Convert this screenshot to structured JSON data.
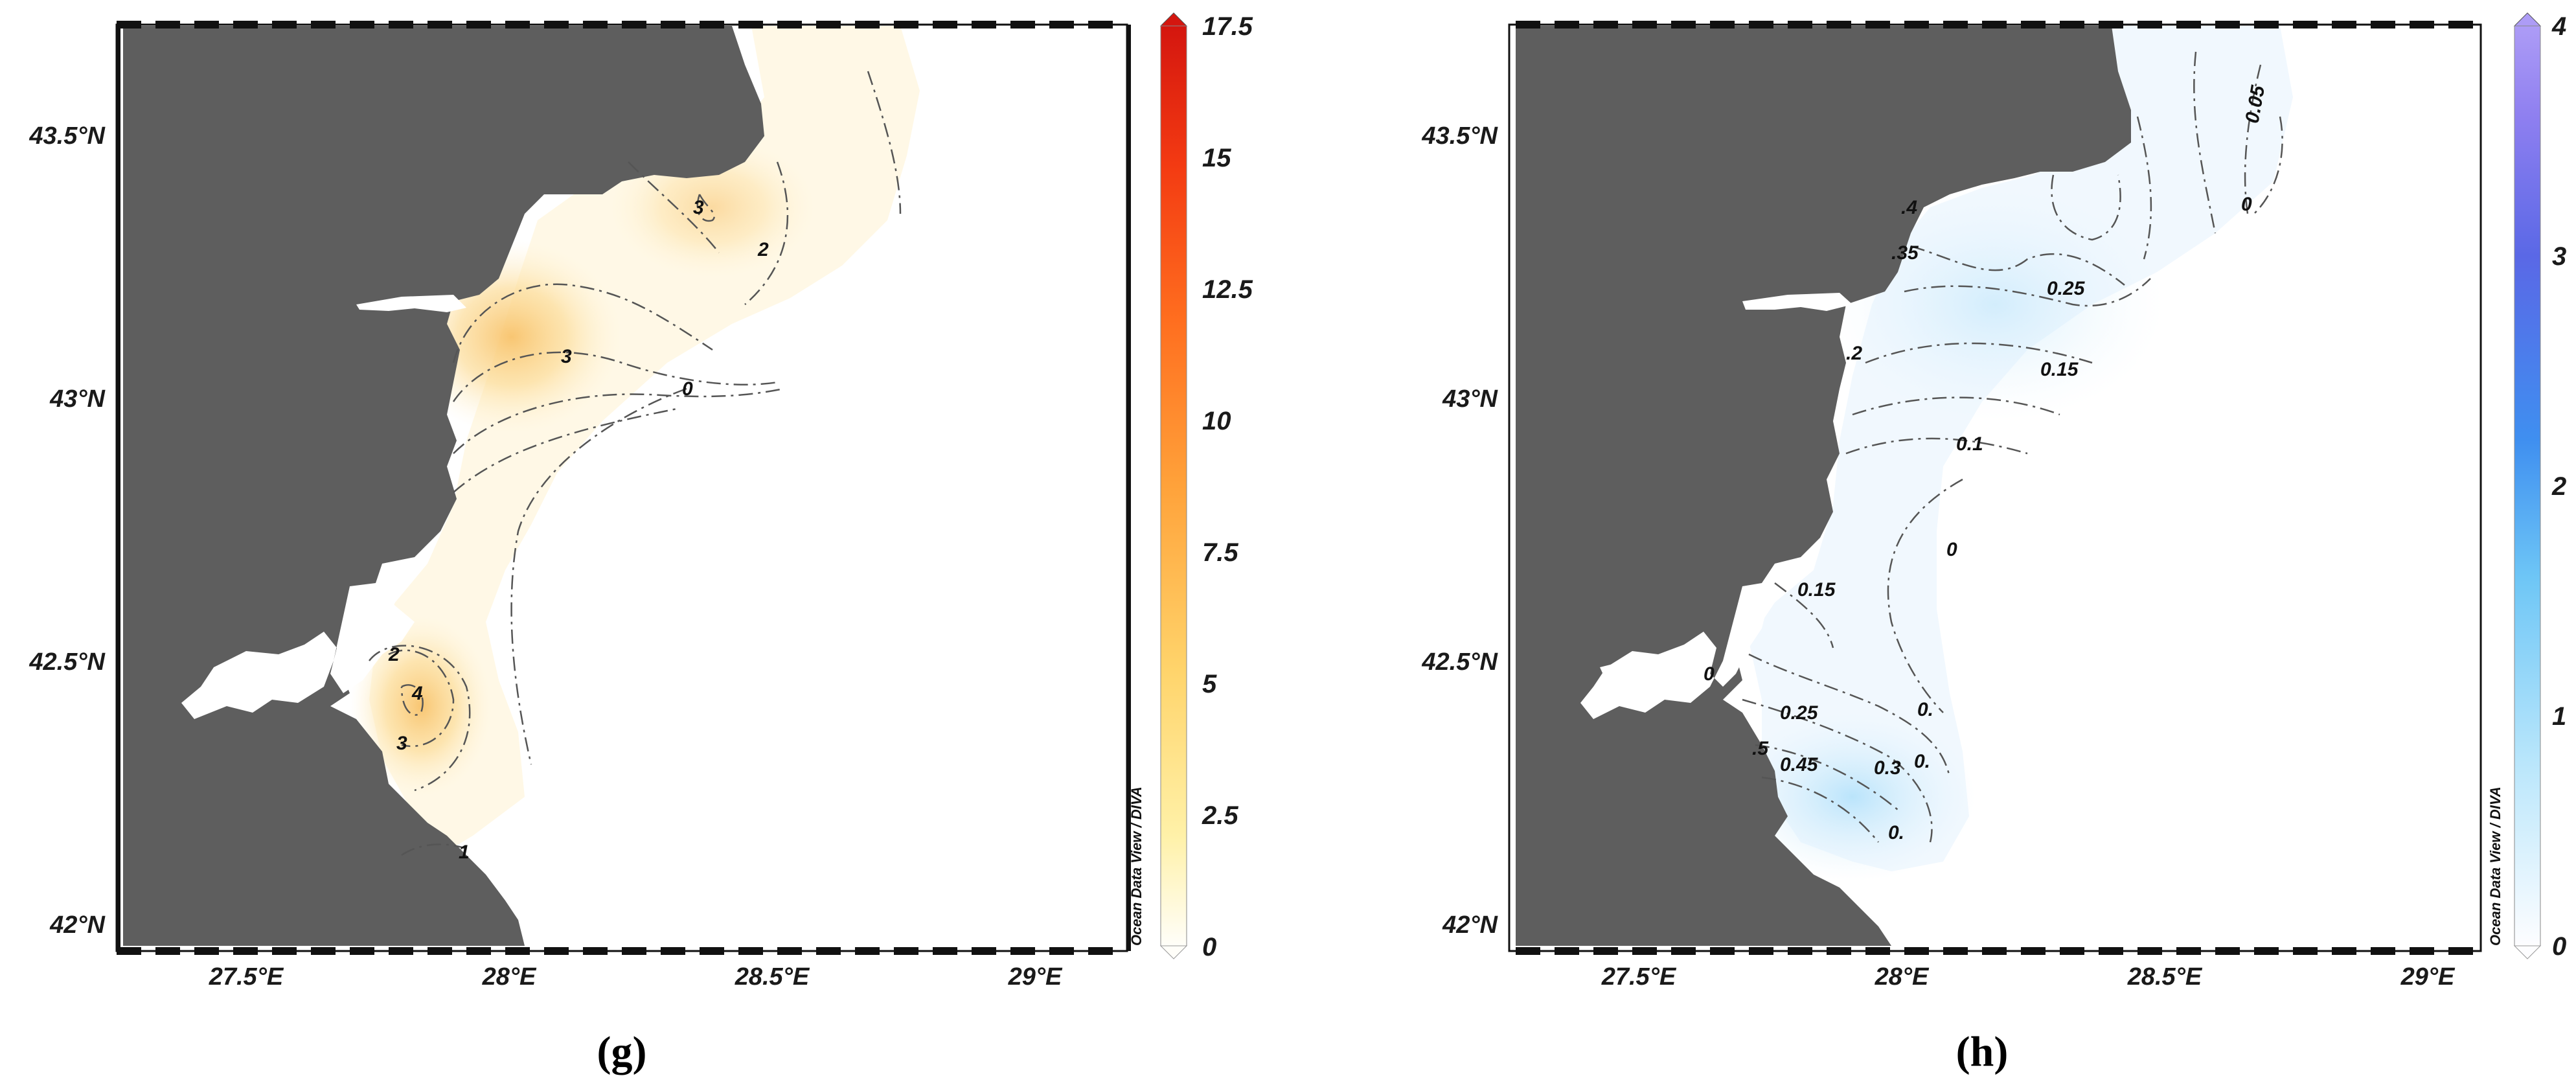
{
  "panels": [
    {
      "id": "g",
      "label": "(g)",
      "lat_ticks": [
        "43.5°N",
        "43°N",
        "42.5°N",
        "42°N"
      ],
      "lon_ticks": [
        "27.5°E",
        "28°E",
        "28.5°E",
        "29°E"
      ],
      "colorbar": {
        "ticks": [
          "17.5",
          "15",
          "12.5",
          "10",
          "7.5",
          "5",
          "2.5",
          "0"
        ],
        "range": [
          0,
          17.5
        ],
        "colors": [
          "#fffef9",
          "#fff1a8",
          "#ffd46b",
          "#ffa23a",
          "#ff6e1f",
          "#f33a12",
          "#d4160f"
        ]
      },
      "credit": "Ocean Data View / DIVA",
      "contour_labels": [
        "3",
        "2",
        "3",
        "0",
        "2",
        "4",
        "3",
        "1"
      ]
    },
    {
      "id": "h",
      "label": "(h)",
      "lat_ticks": [
        "43.5°N",
        "43°N",
        "42.5°N",
        "42°N"
      ],
      "lon_ticks": [
        "27.5°E",
        "28°E",
        "28.5°E",
        "29°E"
      ],
      "colorbar": {
        "ticks": [
          "4",
          "3",
          "2",
          "1",
          "0"
        ],
        "range": [
          0,
          4
        ],
        "colors": [
          "#fdfdff",
          "#b9e6fb",
          "#6ec6f6",
          "#3f8ff0",
          "#5a68e6",
          "#8e7ff0",
          "#ad9cf6"
        ]
      },
      "credit": "Ocean Data View / DIVA",
      "contour_labels": [
        "0.05",
        "0",
        ".4",
        ".35",
        "0.25",
        ".2",
        "0.15",
        "0.1",
        "0",
        "0.15",
        "0",
        "0.25",
        "0.45",
        ".5",
        "0.3",
        "0.",
        "0.",
        "0."
      ]
    }
  ],
  "colors": {
    "land": "#5e5e5e",
    "frame": "#111111"
  }
}
